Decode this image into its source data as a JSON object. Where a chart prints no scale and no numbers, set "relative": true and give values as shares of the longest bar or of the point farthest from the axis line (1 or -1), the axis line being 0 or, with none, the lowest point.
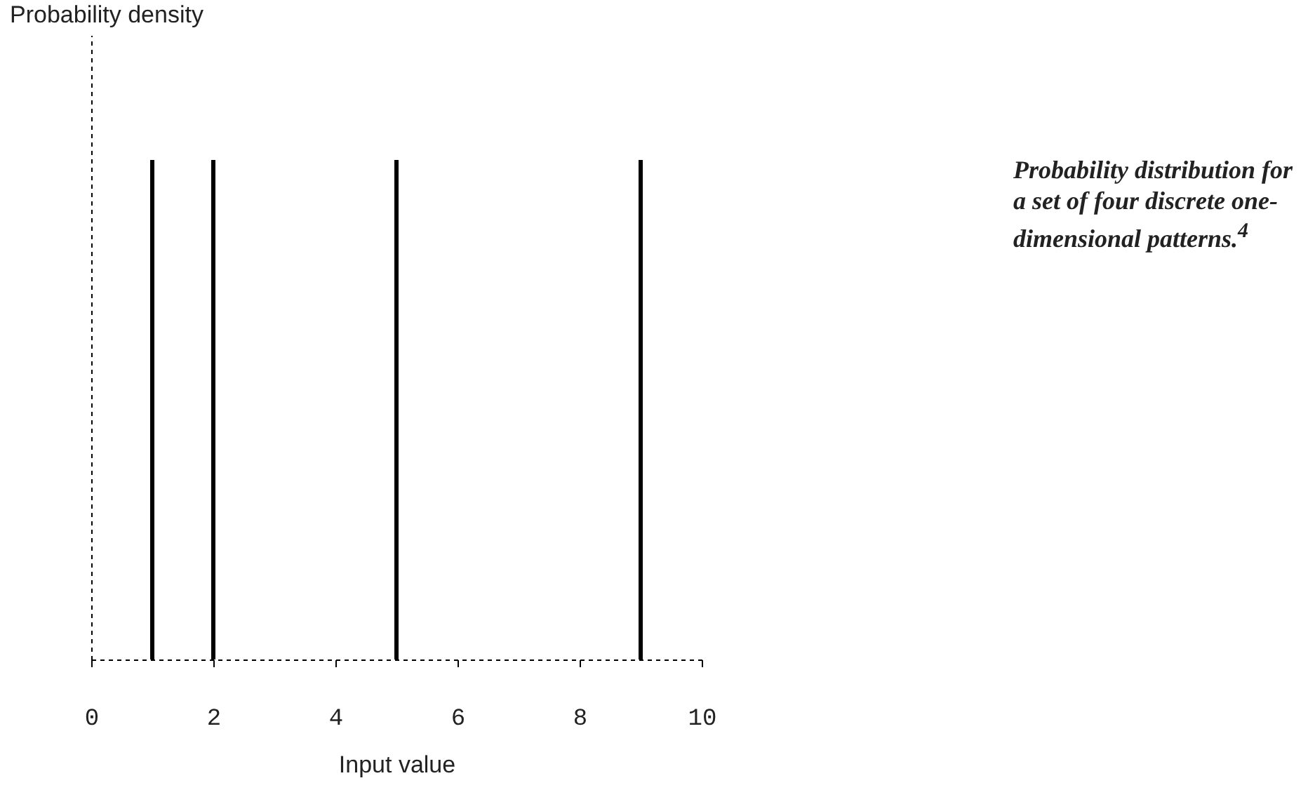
{
  "chart_data": {
    "type": "bar",
    "relative": true,
    "xlabel": "Input value",
    "x": [
      1,
      2,
      5,
      9
    ],
    "series": [
      {
        "color": "#000000",
        "values": [
          1,
          1,
          1,
          1
        ]
      }
    ],
    "xlim": [
      0,
      10
    ],
    "xticks": [
      0,
      2,
      4,
      6,
      8,
      10
    ],
    "annotations": [
      "Probability density",
      "Probability distribution for a set of four discrete one-dimensional patterns.$^{4}$"
    ]
  }
}
